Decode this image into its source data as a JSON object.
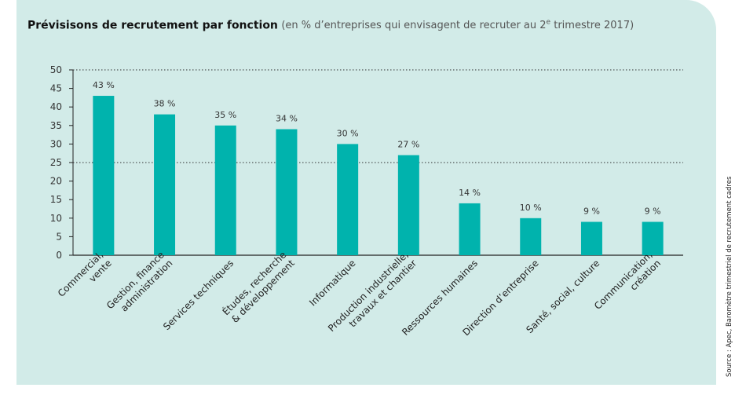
{
  "title": {
    "main": "Prévisisons de recrutement par fonction",
    "sub_prefix": "(en % d’entreprises qui envisagent de recruter au 2",
    "sub_sup": "e",
    "sub_suffix": " trimestre 2017)"
  },
  "source": "Source : Apec, Baromètre trimestriel de recrutement cadres",
  "colors": {
    "background": "#d2ebe8",
    "bar": "#00b3ad",
    "axis": "#222222"
  },
  "chart_data": {
    "type": "bar",
    "title": "Prévisisons de recrutement par fonction",
    "xlabel": "",
    "ylabel": "",
    "ylim": [
      0,
      50
    ],
    "yticks": [
      0,
      5,
      10,
      15,
      20,
      25,
      30,
      35,
      40,
      45,
      50
    ],
    "reference_lines": [
      25,
      50
    ],
    "grid": false,
    "categories": [
      [
        "Commercial,",
        "vente"
      ],
      [
        "Gestion, finance",
        "administration"
      ],
      [
        "Services techniques"
      ],
      [
        "Études, recherche",
        "& développement"
      ],
      [
        "Informatique"
      ],
      [
        "Production industrielle,",
        "travaux et chantier"
      ],
      [
        "Ressources humaines"
      ],
      [
        "Direction d’entreprise"
      ],
      [
        "Santé, social, culture"
      ],
      [
        "Communication,",
        "création"
      ]
    ],
    "values": [
      43,
      38,
      35,
      34,
      30,
      27,
      14,
      10,
      9,
      9
    ],
    "data_labels": [
      "43 %",
      "38 %",
      "35 %",
      "34 %",
      "30 %",
      "27 %",
      "14 %",
      "10 %",
      "9 %",
      "9 %"
    ]
  }
}
